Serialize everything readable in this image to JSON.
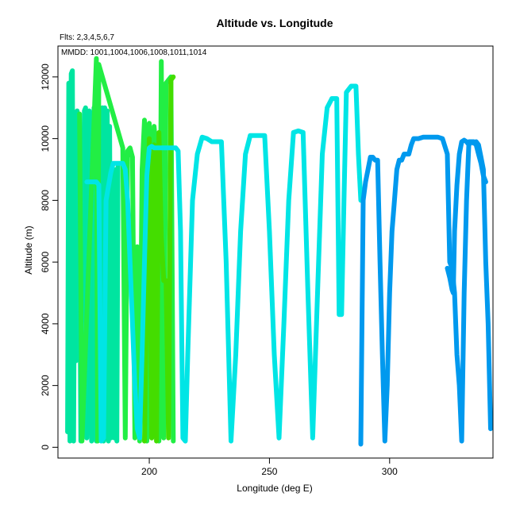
{
  "chart_data": {
    "type": "line",
    "title": "Altitude vs. Longitude",
    "annotations": [
      "Flts: 2,3,4,5,6,7",
      "MMDD: 1001,1004,1006,1008,1011,1014"
    ],
    "xlabel": "Longitude (deg E)",
    "ylabel": "Altitude (m)",
    "xlim": [
      162,
      343
    ],
    "ylim": [
      -350,
      13000
    ],
    "xticks": [
      200,
      250,
      300
    ],
    "yticks": [
      0,
      2000,
      4000,
      6000,
      8000,
      10000,
      12000
    ],
    "grid": false,
    "series": [
      {
        "color": "#00e5a0",
        "x": [
          166,
          166.5,
          167,
          167.5,
          168,
          168.5,
          169,
          169.5,
          170,
          170.5,
          171,
          171.5,
          172,
          172.5,
          173,
          173.5,
          174,
          175,
          176,
          177,
          177.5,
          178,
          178.5,
          179,
          179.5,
          180,
          180.5,
          181,
          181.5,
          182,
          182.5,
          183,
          183.5,
          184,
          184.5,
          185,
          185.5,
          186,
          186.5,
          187
        ],
        "y": [
          500,
          11800,
          200,
          12100,
          12200,
          200,
          7600,
          2800,
          10900,
          3000,
          7500,
          200,
          6200,
          8000,
          10900,
          11000,
          300,
          10900,
          200,
          11000,
          2000,
          200,
          10000,
          500,
          11000,
          300,
          11000,
          200,
          11000,
          300,
          10900,
          200,
          10400,
          300,
          9000,
          8600,
          300,
          9000,
          200,
          9100
        ]
      },
      {
        "color": "#22ee44",
        "x": [
          171,
          172,
          178,
          178.5,
          179,
          189,
          190,
          191,
          192,
          193,
          194,
          195,
          196,
          197,
          198,
          199,
          200,
          201,
          202,
          203,
          204,
          205,
          206,
          207,
          208,
          209,
          210
        ],
        "y": [
          10800,
          200,
          12600,
          200,
          12400,
          9700,
          300,
          9600,
          9700,
          9400,
          300,
          6500,
          200,
          9000,
          10600,
          200,
          10500,
          300,
          10400,
          9500,
          200,
          12500,
          300,
          11800,
          11900,
          12000,
          200
        ]
      },
      {
        "color": "#44dd00",
        "x": [
          198,
          199,
          200,
          201,
          202,
          203,
          204,
          205,
          206,
          207,
          208,
          209,
          210
        ],
        "y": [
          200,
          5400,
          10000,
          300,
          9800,
          200,
          10200,
          6800,
          5400,
          5400,
          300,
          11900,
          12000
        ]
      },
      {
        "color": "#00e5e5",
        "x": [
          174,
          175,
          176,
          177,
          178,
          179,
          180,
          181,
          182,
          184,
          185,
          186,
          187,
          188,
          189,
          190,
          191,
          192,
          193,
          194,
          195,
          196,
          197,
          198,
          199,
          200,
          201,
          202,
          203,
          204,
          205,
          206,
          207,
          208,
          209,
          210,
          211,
          212,
          213,
          214,
          215,
          216,
          218,
          220,
          222,
          224,
          226,
          228,
          230,
          232,
          234,
          236,
          238,
          240,
          242,
          244,
          246,
          248,
          250,
          252,
          254,
          256,
          258,
          260,
          262,
          264,
          266,
          268,
          270,
          272,
          274,
          276,
          278,
          279,
          280,
          281,
          282,
          284,
          285,
          286,
          287,
          288
        ],
        "y": [
          8600,
          8600,
          8600,
          8600,
          8600,
          8500,
          200,
          300,
          8000,
          8900,
          9200,
          9200,
          9200,
          9200,
          9200,
          9000,
          8000,
          6000,
          4000,
          2000,
          600,
          300,
          3000,
          6000,
          8800,
          9700,
          9750,
          9700,
          9700,
          9700,
          9700,
          9700,
          9700,
          9700,
          9700,
          9700,
          9700,
          9600,
          7000,
          300,
          200,
          3000,
          8000,
          9500,
          10050,
          10000,
          9900,
          9900,
          9900,
          6000,
          200,
          3000,
          7000,
          9500,
          10100,
          10100,
          10100,
          10100,
          7000,
          3000,
          300,
          4000,
          8000,
          10200,
          10250,
          10200,
          5000,
          300,
          5000,
          9500,
          11000,
          11300,
          11300,
          4300,
          4300,
          8000,
          11500,
          11700,
          11700,
          11700,
          9500,
          8000
        ]
      },
      {
        "color": "#0099ee",
        "x": [
          288,
          289,
          290,
          291,
          292,
          293,
          294,
          295,
          296,
          297,
          298,
          299,
          300,
          301,
          302,
          303,
          304,
          305,
          306,
          307,
          308,
          309,
          310,
          312,
          314,
          316,
          318,
          320,
          322,
          324,
          325,
          326,
          327,
          328,
          329,
          330,
          331,
          332,
          333,
          334,
          335,
          336,
          337,
          338,
          339,
          340,
          341,
          342
        ],
        "y": [
          100,
          8000,
          8600,
          9000,
          9400,
          9400,
          9300,
          9300,
          6000,
          3000,
          200,
          2000,
          5000,
          7000,
          8000,
          9000,
          9300,
          9300,
          9500,
          9500,
          9500,
          9800,
          10000,
          10000,
          10050,
          10050,
          10050,
          10050,
          10000,
          9500,
          6000,
          5800,
          5000,
          3000,
          2000,
          200,
          5000,
          8000,
          9900,
          9900,
          9850,
          9900,
          9800,
          9400,
          9000,
          6000,
          4000,
          600
        ]
      },
      {
        "color": "#0099ee",
        "x": [
          324,
          325,
          326,
          326.5,
          327,
          328,
          329,
          330,
          331,
          332,
          333,
          334,
          335,
          336,
          337,
          338,
          339,
          340
        ],
        "y": [
          5800,
          5500,
          5100,
          5000,
          7000,
          8500,
          9500,
          9900,
          9950,
          9900,
          9800,
          9900,
          9900,
          9800,
          9500,
          9200,
          8800,
          8600
        ]
      }
    ]
  }
}
